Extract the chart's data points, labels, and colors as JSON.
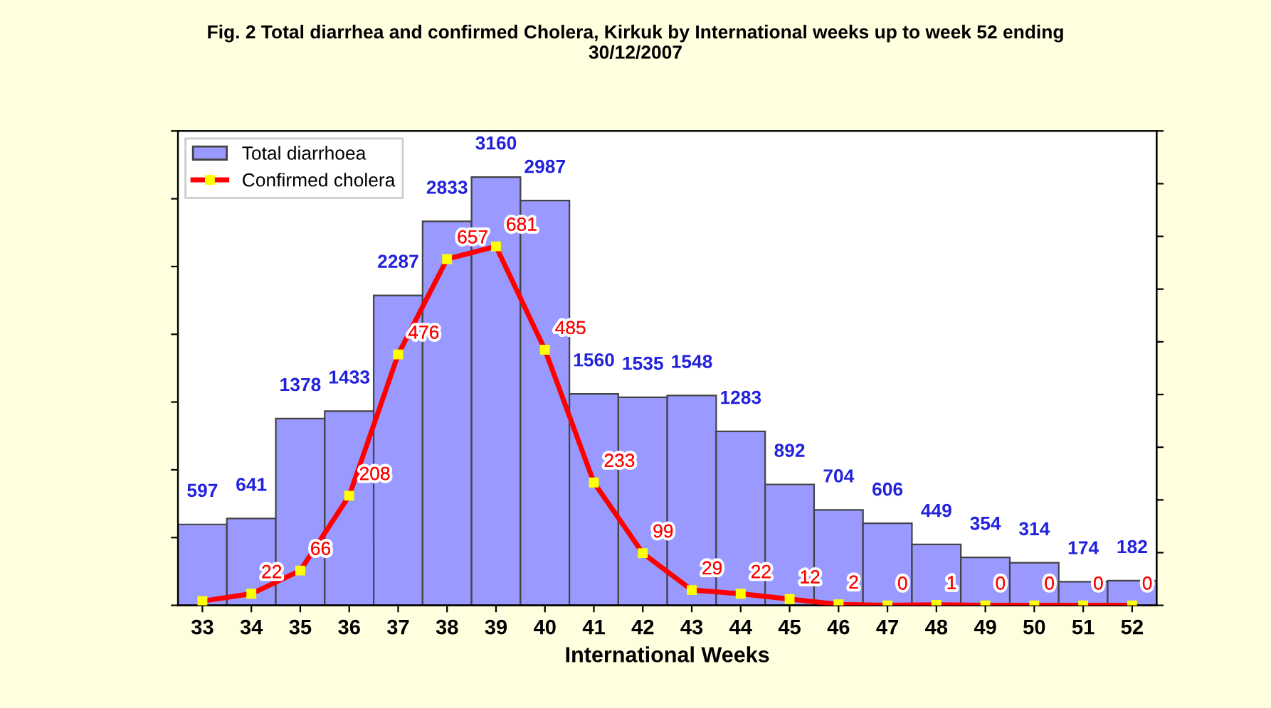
{
  "chart_data": {
    "type": "bar",
    "title": "Fig. 2 Total diarrhea and confirmed Cholera, Kirkuk by International weeks up to week 52 ending\n30/12/2007",
    "xlabel": "International Weeks",
    "categories": [
      "33",
      "34",
      "35",
      "36",
      "37",
      "38",
      "39",
      "40",
      "41",
      "42",
      "43",
      "44",
      "45",
      "46",
      "47",
      "48",
      "49",
      "50",
      "51",
      "52"
    ],
    "series": [
      {
        "name": "Total diarrhoea",
        "color": "#9999ff",
        "values": [
          597,
          641,
          1378,
          1433,
          2287,
          2833,
          3160,
          2987,
          1560,
          1535,
          1548,
          1283,
          892,
          704,
          606,
          449,
          354,
          314,
          174,
          182
        ],
        "value_labels": [
          "597",
          "641",
          "1378",
          "1433",
          "2287",
          "2833",
          "3160",
          "2987",
          "1560",
          "1535",
          "1548",
          "1283",
          "892",
          "704",
          "606",
          "449",
          "354",
          "314",
          "174",
          "182"
        ]
      },
      {
        "name": "Confirmed cholera",
        "type": "line",
        "axis": "y2",
        "color": "#ff0000",
        "marker": "square",
        "values": [
          8,
          22,
          66,
          208,
          476,
          657,
          681,
          485,
          233,
          99,
          29,
          22,
          12,
          2,
          0,
          1,
          0,
          0,
          0,
          0
        ],
        "value_labels": [
          null,
          "22",
          "66",
          "208",
          "476",
          "657",
          "681",
          "485",
          "233",
          "99",
          "29",
          "22",
          "12",
          "2",
          "0",
          "1",
          "0",
          "0",
          "0",
          "0"
        ]
      }
    ],
    "ylim": [
      0,
      3500
    ],
    "yticks": [
      {
        "value": 0,
        "label": null
      },
      {
        "value": 500,
        "label": null
      },
      {
        "value": 1000,
        "label": null
      },
      {
        "value": 1500,
        "label": null
      },
      {
        "value": 2000,
        "label": null
      },
      {
        "value": 2500,
        "label": null
      },
      {
        "value": 3000,
        "label": null
      },
      {
        "value": 3500,
        "label": null
      }
    ],
    "y2lim": [
      0,
      900
    ],
    "y2ticks": [
      {
        "value": 0,
        "label": null
      },
      {
        "value": 100,
        "label": null
      },
      {
        "value": 200,
        "label": null
      },
      {
        "value": 300,
        "label": null
      },
      {
        "value": 400,
        "label": null
      },
      {
        "value": 500,
        "label": null
      },
      {
        "value": 600,
        "label": null
      },
      {
        "value": 700,
        "label": null
      },
      {
        "value": 800,
        "label": null
      },
      {
        "value": 900,
        "label": null
      }
    ],
    "tick_labels": "x",
    "legend": "top left",
    "grid": false
  }
}
